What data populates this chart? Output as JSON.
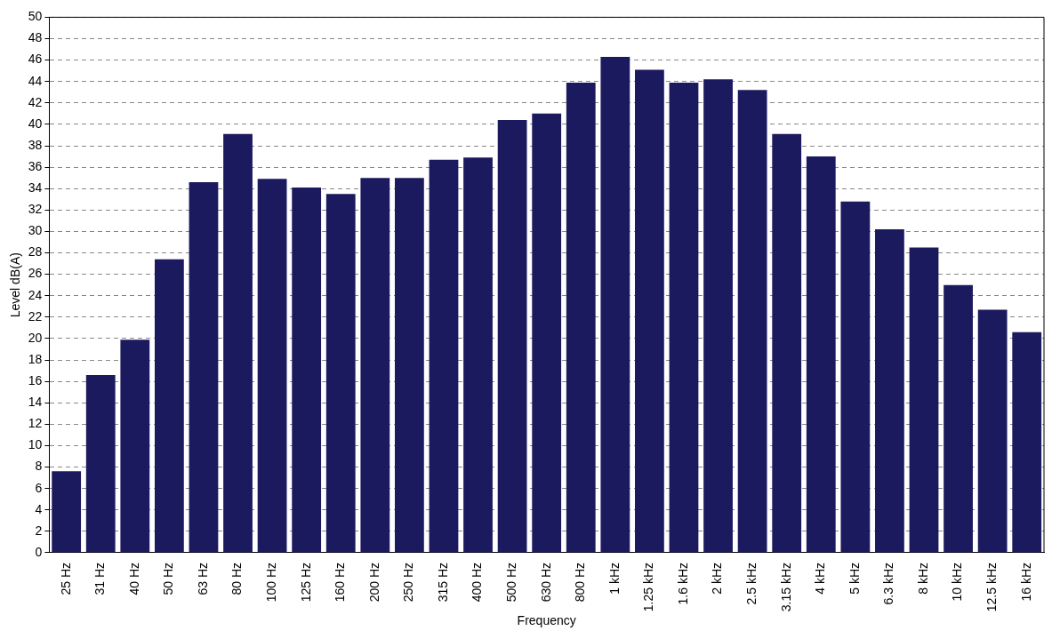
{
  "chart_data": {
    "type": "bar",
    "xlabel": "Frequency",
    "ylabel": "Level dB(A)",
    "categories": [
      "25 Hz",
      "31 Hz",
      "40 Hz",
      "50 Hz",
      "63 Hz",
      "80 Hz",
      "100 Hz",
      "125 Hz",
      "160 Hz",
      "200 Hz",
      "250 Hz",
      "315 Hz",
      "400 Hz",
      "500 Hz",
      "630 Hz",
      "800 Hz",
      "1 kHz",
      "1.25 kHz",
      "1.6 kHz",
      "2 kHz",
      "2.5 kHz",
      "3.15 kHz",
      "4 kHz",
      "5 kHz",
      "6.3 kHz",
      "8 kHz",
      "10 kHz",
      "12.5 kHz",
      "16 kHz"
    ],
    "values": [
      7.6,
      16.6,
      19.9,
      27.4,
      34.6,
      39.1,
      34.9,
      34.1,
      33.5,
      35.0,
      35.0,
      36.7,
      36.9,
      40.4,
      41.0,
      43.9,
      46.3,
      45.1,
      43.9,
      44.2,
      43.2,
      39.1,
      37.0,
      32.8,
      30.2,
      28.5,
      25.0,
      22.7,
      20.6
    ],
    "color": "#1c1a5e",
    "ylim": [
      0,
      50
    ],
    "yticks": [
      0,
      2,
      4,
      6,
      8,
      10,
      12,
      14,
      16,
      18,
      20,
      22,
      24,
      26,
      28,
      30,
      32,
      34,
      36,
      38,
      40,
      42,
      44,
      46,
      48,
      50
    ],
    "grid": "y",
    "legend": false
  }
}
